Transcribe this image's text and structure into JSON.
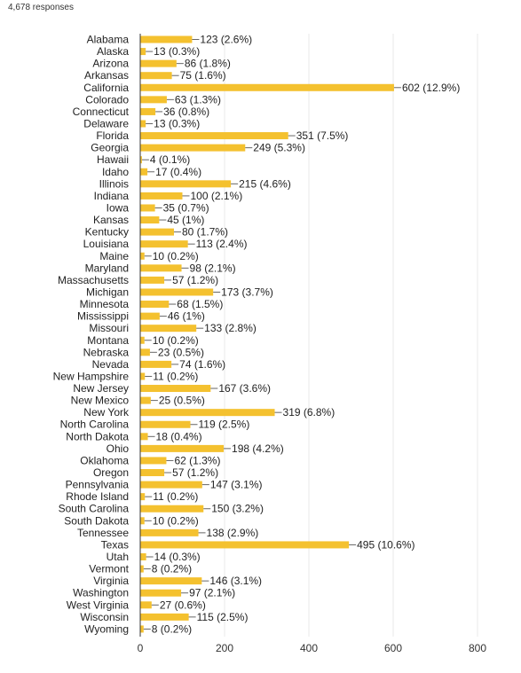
{
  "header": {
    "responses": "4,678 responses"
  },
  "colors": {
    "bar": "#f4c12f",
    "grid": "#e8e8e8",
    "axis": "#333333",
    "leader": "#666666"
  },
  "chart_data": {
    "type": "bar",
    "orientation": "horizontal",
    "title": "",
    "xlabel": "",
    "ylabel": "",
    "xlim": [
      0,
      800
    ],
    "xticks": [
      0,
      200,
      400,
      600,
      800
    ],
    "grid": true,
    "categories": [
      "Alabama",
      "Alaska",
      "Arizona",
      "Arkansas",
      "California",
      "Colorado",
      "Connecticut",
      "Delaware",
      "Florida",
      "Georgia",
      "Hawaii",
      "Idaho",
      "Illinois",
      "Indiana",
      "Iowa",
      "Kansas",
      "Kentucky",
      "Louisiana",
      "Maine",
      "Maryland",
      "Massachusetts",
      "Michigan",
      "Minnesota",
      "Mississippi",
      "Missouri",
      "Montana",
      "Nebraska",
      "Nevada",
      "New Hampshire",
      "New Jersey",
      "New Mexico",
      "New York",
      "North Carolina",
      "North Dakota",
      "Ohio",
      "Oklahoma",
      "Oregon",
      "Pennsylvania",
      "Rhode Island",
      "South Carolina",
      "South Dakota",
      "Tennessee",
      "Texas",
      "Utah",
      "Vermont",
      "Virginia",
      "Washington",
      "West Virginia",
      "Wisconsin",
      "Wyoming"
    ],
    "values": [
      123,
      13,
      86,
      75,
      602,
      63,
      36,
      13,
      351,
      249,
      4,
      17,
      215,
      100,
      35,
      45,
      80,
      113,
      10,
      98,
      57,
      173,
      68,
      46,
      133,
      10,
      23,
      74,
      11,
      167,
      25,
      319,
      119,
      18,
      198,
      62,
      57,
      147,
      11,
      150,
      10,
      138,
      495,
      14,
      8,
      146,
      97,
      27,
      115,
      8
    ],
    "data_labels": [
      "123 (2.6%)",
      "13 (0.3%)",
      "86 (1.8%)",
      "75 (1.6%)",
      "602 (12.9%)",
      "63 (1.3%)",
      "36 (0.8%)",
      "13 (0.3%)",
      "351 (7.5%)",
      "249 (5.3%)",
      "4 (0.1%)",
      "17 (0.4%)",
      "215 (4.6%)",
      "100 (2.1%)",
      "35 (0.7%)",
      "45 (1%)",
      "80 (1.7%)",
      "113 (2.4%)",
      "10 (0.2%)",
      "98 (2.1%)",
      "57 (1.2%)",
      "173 (3.7%)",
      "68 (1.5%)",
      "46 (1%)",
      "133 (2.8%)",
      "10 (0.2%)",
      "23 (0.5%)",
      "74 (1.6%)",
      "11 (0.2%)",
      "167 (3.6%)",
      "25 (0.5%)",
      "319 (6.8%)",
      "119 (2.5%)",
      "18 (0.4%)",
      "198 (4.2%)",
      "62 (1.3%)",
      "57 (1.2%)",
      "147 (3.1%)",
      "11 (0.2%)",
      "150 (3.2%)",
      "10 (0.2%)",
      "138 (2.9%)",
      "495 (10.6%)",
      "14 (0.3%)",
      "8 (0.2%)",
      "146 (3.1%)",
      "97 (2.1%)",
      "27 (0.6%)",
      "115 (2.5%)",
      "8 (0.2%)"
    ]
  }
}
